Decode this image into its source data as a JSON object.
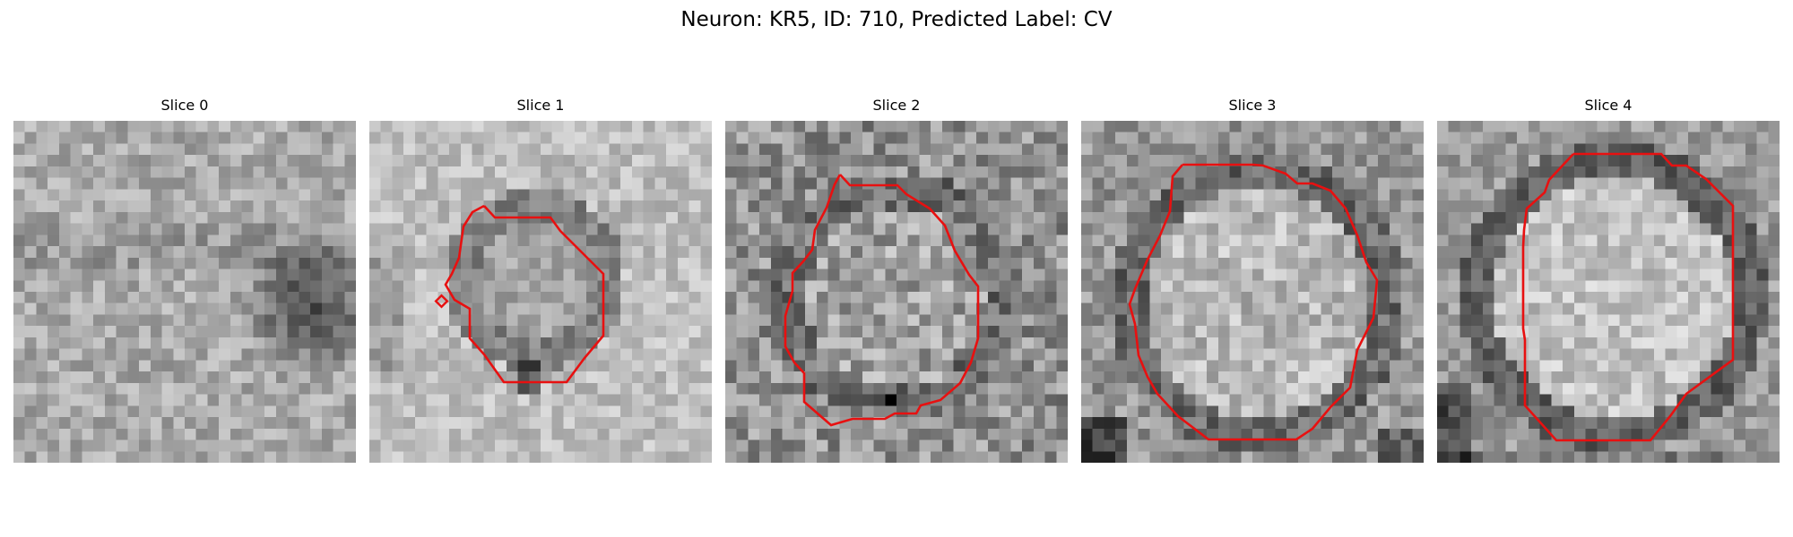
{
  "figure": {
    "title": "Neuron: KR5, ID: 710, Predicted Label: CV"
  },
  "contour_color": "#e81010",
  "panels": [
    {
      "title": "Slice 0",
      "image": "grayscale EM patch, noisy light field with a dark blob on the right",
      "has_contour": false
    },
    {
      "title": "Slice 1",
      "image": "grayscale EM patch, light field with a small darker ring in the center",
      "has_contour": true
    },
    {
      "title": "Slice 2",
      "image": "grayscale EM patch, textured mid-gray with a ring outline",
      "has_contour": true
    },
    {
      "title": "Slice 3",
      "image": "grayscale EM patch, bright round region with a dark rim",
      "has_contour": true
    },
    {
      "title": "Slice 4",
      "image": "grayscale EM patch, large bright round region with a dark rim",
      "has_contour": true
    }
  ]
}
